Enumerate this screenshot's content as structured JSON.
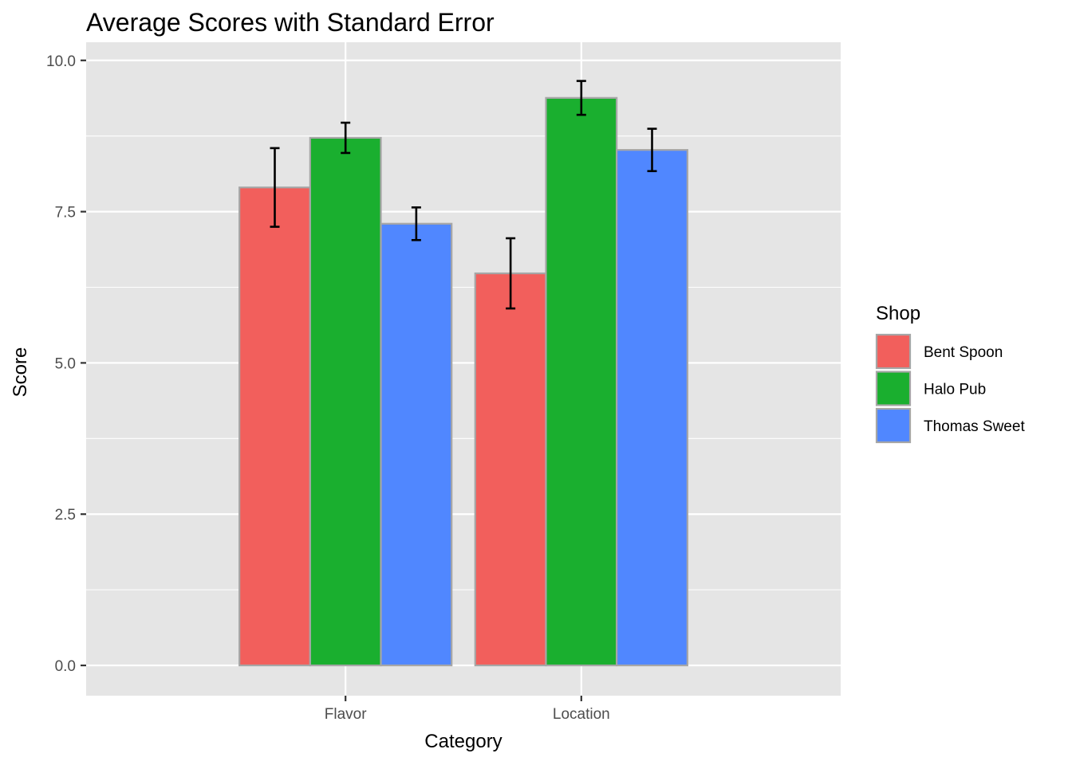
{
  "chart_data": {
    "type": "bar",
    "title": "Average Scores with Standard Error",
    "xlabel": "Category",
    "ylabel": "Score",
    "categories": [
      "Flavor",
      "Location"
    ],
    "series": [
      {
        "name": "Bent Spoon",
        "color": "#F25F5C",
        "values": [
          7.9,
          6.48
        ],
        "se": [
          0.65,
          0.58
        ]
      },
      {
        "name": "Halo Pub",
        "color": "#1AAF2F",
        "values": [
          8.72,
          9.38
        ],
        "se": [
          0.25,
          0.28
        ]
      },
      {
        "name": "Thomas Sweet",
        "color": "#5087FF",
        "values": [
          7.3,
          8.52
        ],
        "se": [
          0.27,
          0.35
        ]
      }
    ],
    "ylim": [
      -0.5,
      10.3
    ],
    "yticks": [
      0.0,
      2.5,
      5.0,
      7.5,
      10.0
    ],
    "ytick_labels": [
      "0.0",
      "2.5",
      "5.0",
      "7.5",
      "10.0"
    ],
    "grid": true,
    "legend": {
      "title": "Shop",
      "position": "right"
    }
  }
}
